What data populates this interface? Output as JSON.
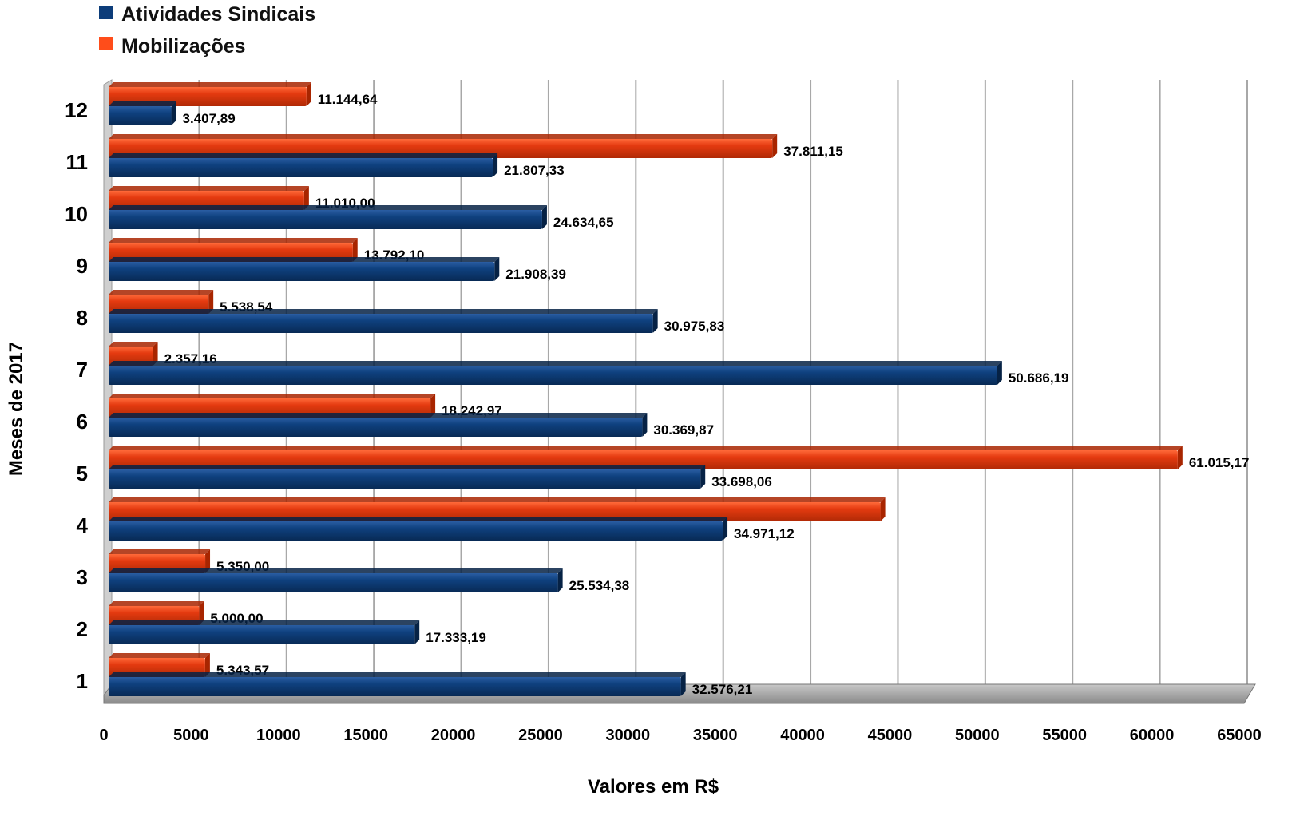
{
  "chart_data": {
    "type": "bar",
    "orientation": "horizontal",
    "title": "",
    "xlabel": "Valores em R$",
    "ylabel": "Meses de 2017",
    "xlim": [
      0,
      65000
    ],
    "xticks": [
      "0",
      "5000",
      "10000",
      "15000",
      "20000",
      "25000",
      "30000",
      "35000",
      "40000",
      "45000",
      "50000",
      "55000",
      "60000",
      "65000"
    ],
    "categories": [
      "1",
      "2",
      "3",
      "4",
      "5",
      "6",
      "7",
      "8",
      "9",
      "10",
      "11",
      "12"
    ],
    "grid": true,
    "legend": "top-left",
    "series": [
      {
        "name": "Atividades Sindicais",
        "color": "#0d3d7a",
        "values": [
          32576.21,
          17333.19,
          25534.38,
          34971.12,
          33698.06,
          30369.87,
          50686.19,
          30975.83,
          21908.39,
          24634.65,
          21807.33,
          3407.89
        ],
        "labels": [
          "32.576,21",
          "17.333,19",
          "25.534,38",
          "34.971,12",
          "33.698,06",
          "30.369,87",
          "50.686,19",
          "30.975,83",
          "21.908,39",
          "24.634,65",
          "21.807,33",
          "3.407,89"
        ]
      },
      {
        "name": "Mobilizações",
        "color": "#e83a0f",
        "values": [
          5343.57,
          5000.0,
          5350.0,
          44000,
          61015.17,
          18242.97,
          2357.16,
          5538.54,
          13792.1,
          11010.0,
          37811.15,
          11144.64
        ],
        "labels": [
          "5.343,57",
          "5.000,00",
          "5.350,00",
          "",
          "61.015,17",
          "18.242,97",
          "2.357,16",
          "5.538,54",
          "13.792,10",
          "11.010,00",
          "37.811,15",
          "11.144,64"
        ]
      }
    ]
  }
}
